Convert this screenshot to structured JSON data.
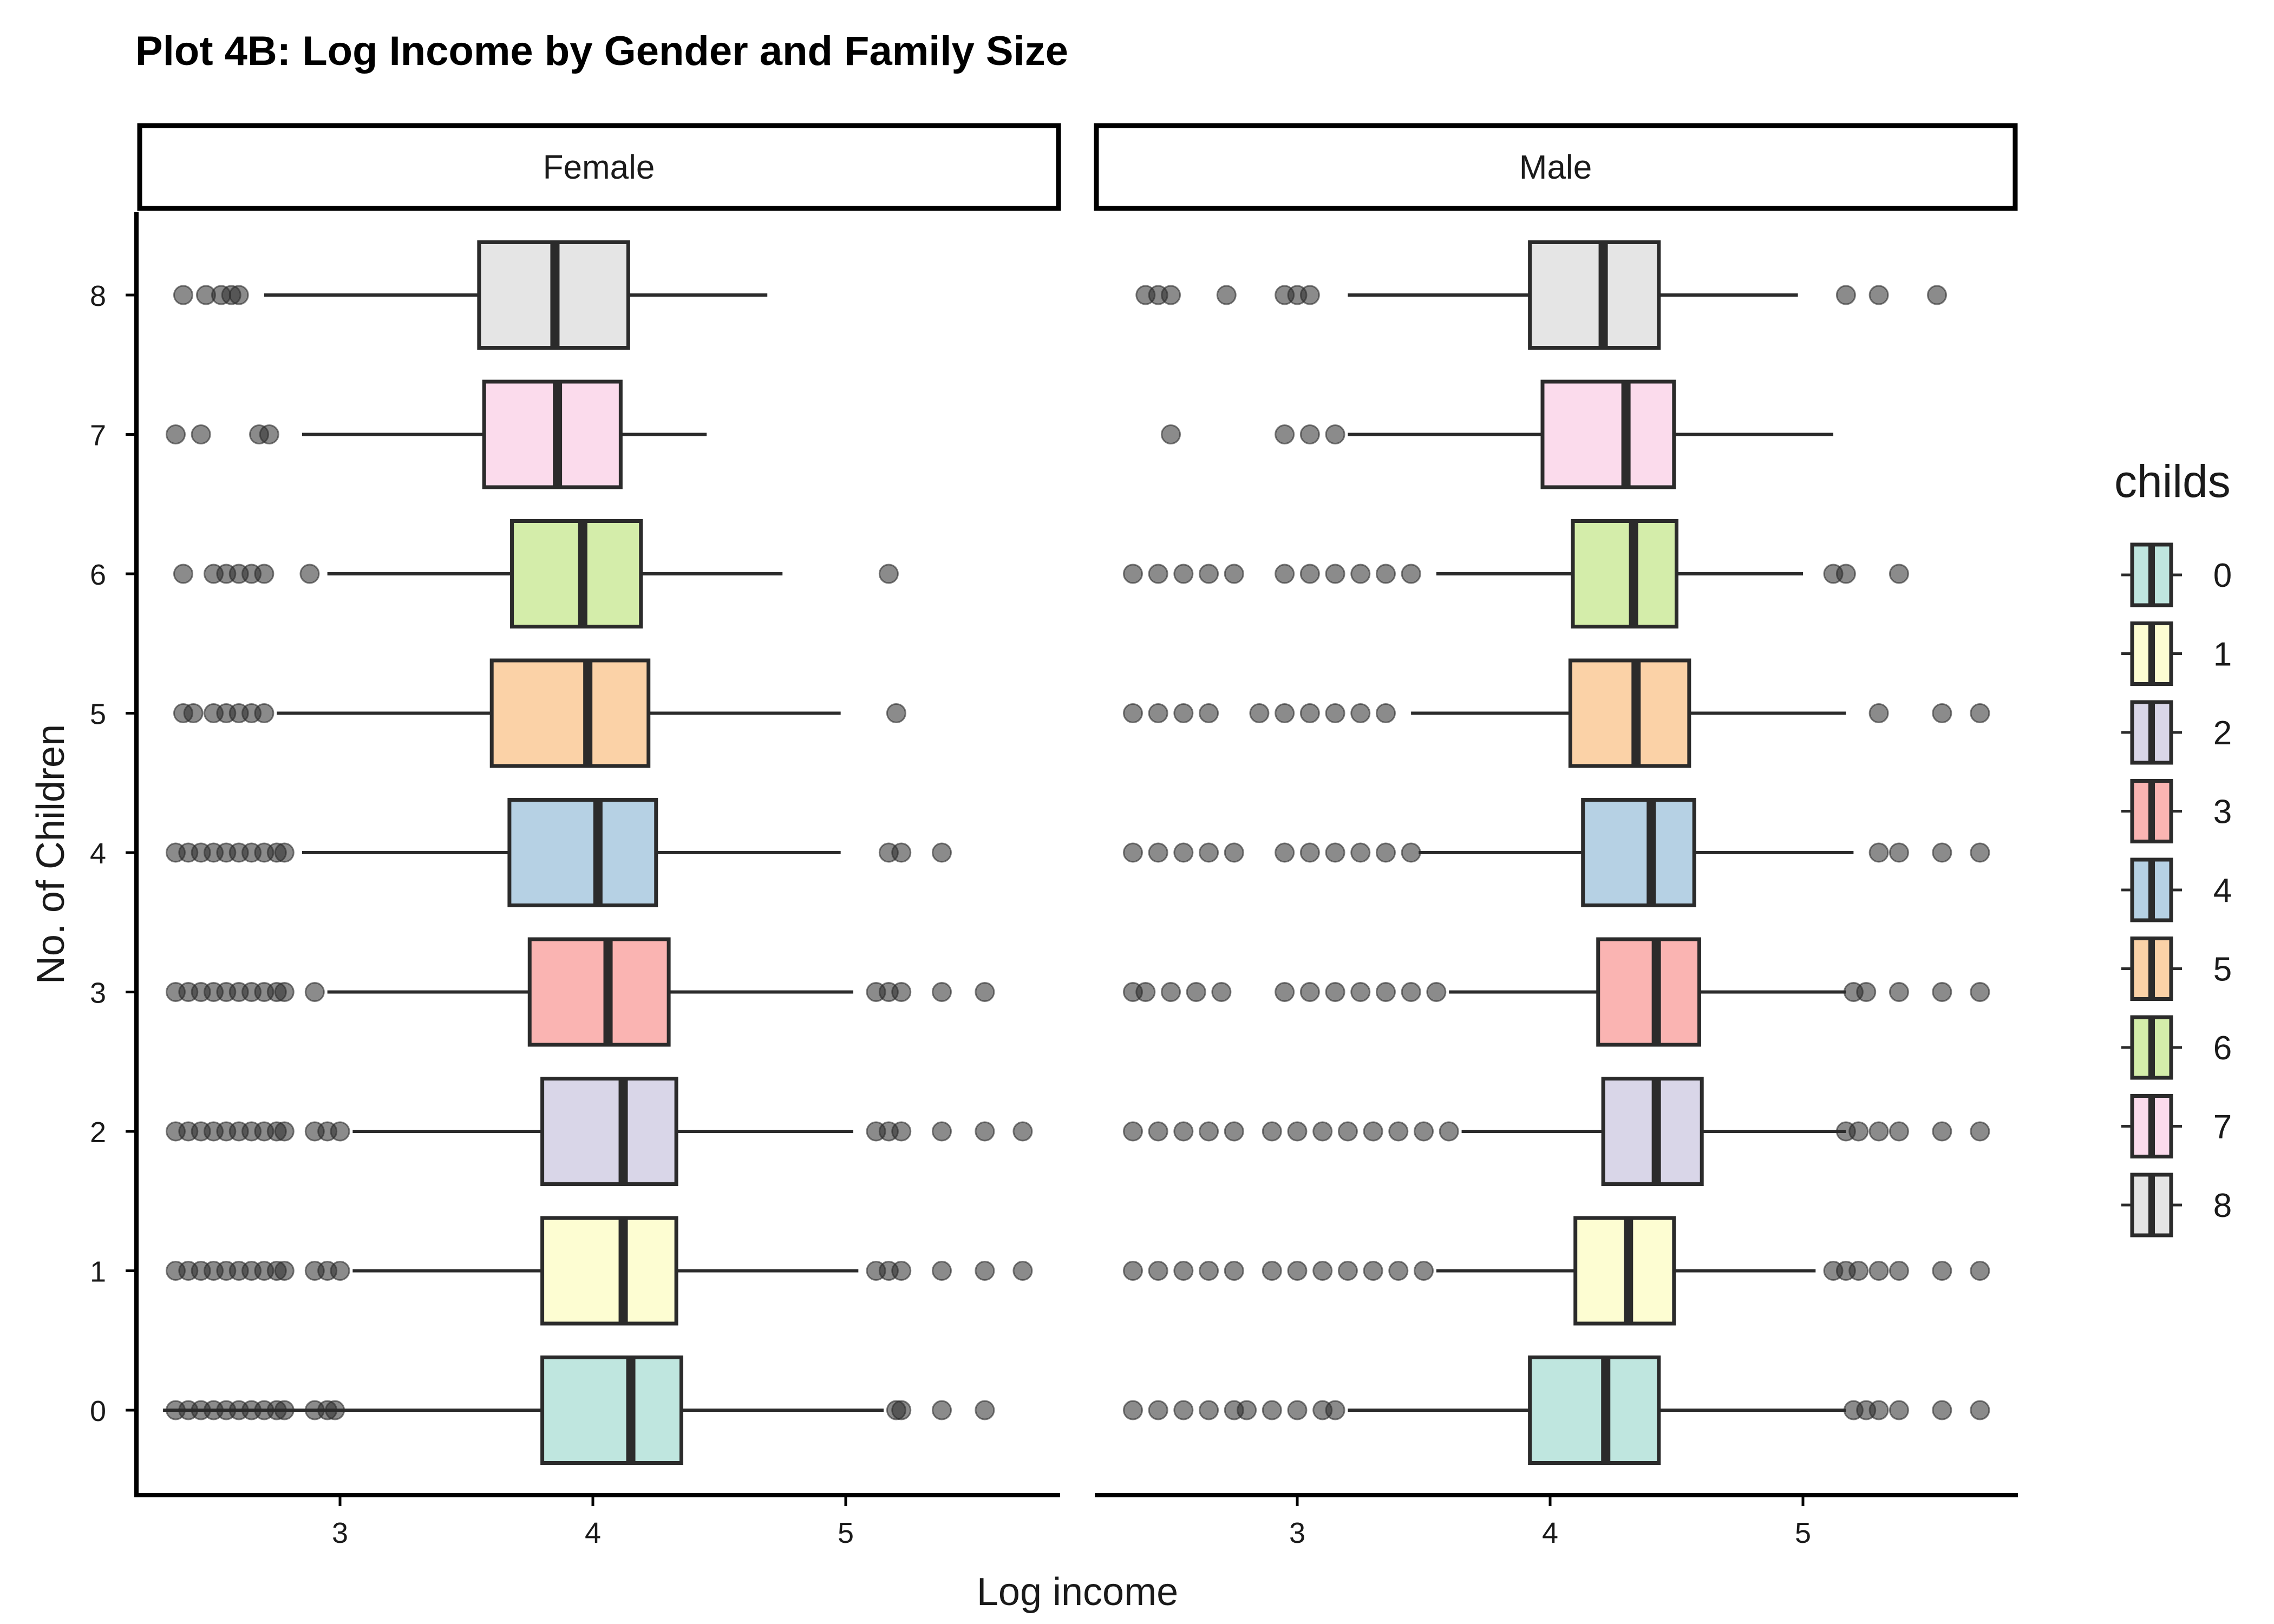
{
  "chart_data": {
    "type": "boxplot",
    "orientation": "horizontal",
    "title": "Plot 4B: Log Income by Gender and Family Size",
    "xlabel": "Log income",
    "ylabel": "No. of Children",
    "xlim": [
      2.3,
      5.75
    ],
    "x_ticks": [
      3,
      4,
      5
    ],
    "y_categories": [
      "0",
      "1",
      "2",
      "3",
      "4",
      "5",
      "6",
      "7",
      "8"
    ],
    "legend": {
      "title": "childs",
      "position": "right",
      "entries": [
        "0",
        "1",
        "2",
        "3",
        "4",
        "5",
        "6",
        "7",
        "8"
      ],
      "colors": [
        "#bfe6df",
        "#fdfdd2",
        "#d9d6e8",
        "#fab4b2",
        "#b6d1e4",
        "#fbd2a7",
        "#d4edaa",
        "#fbdbec",
        "#e5e5e5"
      ]
    },
    "grid": false,
    "panels": [
      {
        "label": "Female",
        "boxes": [
          {
            "childs": "0",
            "whisker_low": 2.3,
            "q1": 3.8,
            "median": 4.15,
            "q3": 4.35,
            "whisker_high": 5.15,
            "outliers": [
              2.35,
              2.4,
              2.45,
              2.5,
              2.55,
              2.6,
              2.65,
              2.7,
              2.75,
              2.78,
              2.9,
              2.95,
              2.98,
              5.2,
              5.22,
              5.38,
              5.55
            ]
          },
          {
            "childs": "1",
            "whisker_low": 3.05,
            "q1": 3.8,
            "median": 4.12,
            "q3": 4.33,
            "whisker_high": 5.05,
            "outliers": [
              2.35,
              2.4,
              2.45,
              2.5,
              2.55,
              2.6,
              2.65,
              2.7,
              2.75,
              2.78,
              2.9,
              2.95,
              3.0,
              5.12,
              5.17,
              5.22,
              5.38,
              5.55,
              5.7
            ]
          },
          {
            "childs": "2",
            "whisker_low": 3.05,
            "q1": 3.8,
            "median": 4.12,
            "q3": 4.33,
            "whisker_high": 5.03,
            "outliers": [
              2.35,
              2.4,
              2.45,
              2.5,
              2.55,
              2.6,
              2.65,
              2.7,
              2.75,
              2.78,
              2.9,
              2.95,
              3.0,
              5.12,
              5.17,
              5.22,
              5.38,
              5.55,
              5.7
            ]
          },
          {
            "childs": "3",
            "whisker_low": 2.95,
            "q1": 3.75,
            "median": 4.06,
            "q3": 4.3,
            "whisker_high": 5.03,
            "outliers": [
              2.35,
              2.4,
              2.45,
              2.5,
              2.55,
              2.6,
              2.65,
              2.7,
              2.75,
              2.78,
              2.9,
              5.12,
              5.17,
              5.22,
              5.38,
              5.55
            ]
          },
          {
            "childs": "4",
            "whisker_low": 2.85,
            "q1": 3.67,
            "median": 4.02,
            "q3": 4.25,
            "whisker_high": 4.98,
            "outliers": [
              2.35,
              2.4,
              2.45,
              2.5,
              2.55,
              2.6,
              2.65,
              2.7,
              2.75,
              2.78,
              5.17,
              5.22,
              5.38
            ]
          },
          {
            "childs": "5",
            "whisker_low": 2.75,
            "q1": 3.6,
            "median": 3.98,
            "q3": 4.22,
            "whisker_high": 4.98,
            "outliers": [
              2.38,
              2.42,
              2.5,
              2.55,
              2.6,
              2.65,
              2.7,
              5.2
            ]
          },
          {
            "childs": "6",
            "whisker_low": 2.95,
            "q1": 3.68,
            "median": 3.96,
            "q3": 4.19,
            "whisker_high": 4.75,
            "outliers": [
              2.38,
              2.5,
              2.55,
              2.6,
              2.65,
              2.7,
              2.88,
              5.17
            ]
          },
          {
            "childs": "7",
            "whisker_low": 2.85,
            "q1": 3.57,
            "median": 3.86,
            "q3": 4.11,
            "whisker_high": 4.45,
            "outliers": [
              2.35,
              2.45,
              2.68,
              2.72
            ]
          },
          {
            "childs": "8",
            "whisker_low": 2.7,
            "q1": 3.55,
            "median": 3.85,
            "q3": 4.14,
            "whisker_high": 4.69,
            "outliers": [
              2.38,
              2.47,
              2.53,
              2.57,
              2.6
            ]
          }
        ]
      },
      {
        "label": "Male",
        "boxes": [
          {
            "childs": "0",
            "whisker_low": 3.2,
            "q1": 3.92,
            "median": 4.22,
            "q3": 4.43,
            "whisker_high": 5.17,
            "outliers": [
              2.35,
              2.45,
              2.55,
              2.65,
              2.75,
              2.8,
              2.9,
              3.0,
              3.1,
              3.15,
              5.2,
              5.25,
              5.3,
              5.38,
              5.55,
              5.7
            ]
          },
          {
            "childs": "1",
            "whisker_low": 3.55,
            "q1": 4.1,
            "median": 4.31,
            "q3": 4.49,
            "whisker_high": 5.05,
            "outliers": [
              2.35,
              2.45,
              2.55,
              2.65,
              2.75,
              2.9,
              3.0,
              3.1,
              3.2,
              3.3,
              3.4,
              3.5,
              5.12,
              5.17,
              5.22,
              5.3,
              5.38,
              5.55,
              5.7
            ]
          },
          {
            "childs": "2",
            "whisker_low": 3.65,
            "q1": 4.21,
            "median": 4.42,
            "q3": 4.6,
            "whisker_high": 5.17,
            "outliers": [
              2.35,
              2.45,
              2.55,
              2.65,
              2.75,
              2.9,
              3.0,
              3.1,
              3.2,
              3.3,
              3.4,
              3.5,
              3.6,
              5.17,
              5.22,
              5.3,
              5.38,
              5.55,
              5.7
            ]
          },
          {
            "childs": "3",
            "whisker_low": 3.6,
            "q1": 4.19,
            "median": 4.42,
            "q3": 4.59,
            "whisker_high": 5.17,
            "outliers": [
              2.35,
              2.4,
              2.5,
              2.6,
              2.7,
              2.95,
              3.05,
              3.15,
              3.25,
              3.35,
              3.45,
              3.55,
              5.2,
              5.25,
              5.38,
              5.55,
              5.7
            ]
          },
          {
            "childs": "4",
            "whisker_low": 3.48,
            "q1": 4.13,
            "median": 4.4,
            "q3": 4.57,
            "whisker_high": 5.2,
            "outliers": [
              2.35,
              2.45,
              2.55,
              2.65,
              2.75,
              2.95,
              3.05,
              3.15,
              3.25,
              3.35,
              3.45,
              5.3,
              5.38,
              5.55,
              5.7
            ]
          },
          {
            "childs": "5",
            "whisker_low": 3.45,
            "q1": 4.08,
            "median": 4.34,
            "q3": 4.55,
            "whisker_high": 5.17,
            "outliers": [
              2.35,
              2.45,
              2.55,
              2.65,
              2.85,
              2.95,
              3.05,
              3.15,
              3.25,
              3.35,
              5.3,
              5.55,
              5.7
            ]
          },
          {
            "childs": "6",
            "whisker_low": 3.55,
            "q1": 4.09,
            "median": 4.33,
            "q3": 4.5,
            "whisker_high": 5.0,
            "outliers": [
              2.35,
              2.45,
              2.55,
              2.65,
              2.75,
              2.95,
              3.05,
              3.15,
              3.25,
              3.35,
              3.45,
              5.12,
              5.17,
              5.38
            ]
          },
          {
            "childs": "7",
            "whisker_low": 3.2,
            "q1": 3.97,
            "median": 4.3,
            "q3": 4.49,
            "whisker_high": 5.12,
            "outliers": [
              2.5,
              2.95,
              3.05,
              3.15
            ]
          },
          {
            "childs": "8",
            "whisker_low": 3.2,
            "q1": 3.92,
            "median": 4.21,
            "q3": 4.43,
            "whisker_high": 4.98,
            "outliers": [
              2.4,
              2.45,
              2.5,
              2.72,
              2.95,
              3.0,
              3.05,
              5.17,
              5.3,
              5.53
            ]
          }
        ]
      }
    ]
  }
}
